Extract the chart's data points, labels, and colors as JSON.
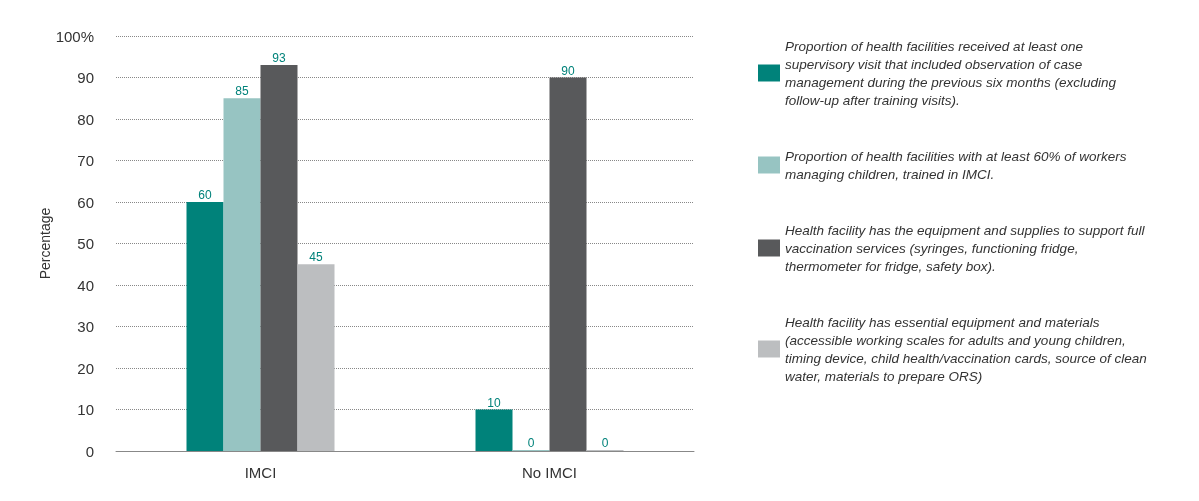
{
  "chart_data": {
    "type": "bar",
    "ylabel": "Percentage",
    "categories": [
      "IMCI",
      "No IMCI"
    ],
    "series": [
      {
        "name": "Proportion of health facilities received at least one supervisory visit that included observation of case management during the previous six months (excluding follow-up after training visits).",
        "color": "#00827a",
        "values": [
          60,
          10
        ]
      },
      {
        "name": "Proportion of health facilities with at least 60% of workers managing children, trained in IMCI.",
        "color": "#97c4c2",
        "values": [
          85,
          0
        ]
      },
      {
        "name": "Health facility has the equipment and supplies to support full vaccination services (syringes, functioning fridge, thermometer for fridge, safety box).",
        "color": "#58595b",
        "values": [
          93,
          90
        ]
      },
      {
        "name": "Health facility has essential equipment and materials (accessible working scales for adults and young children, timing device, child health/vaccination cards, source of clean water, materials to prepare ORS)",
        "color": "#bcbec0",
        "values": [
          45,
          0
        ]
      }
    ],
    "ylim": [
      0,
      100
    ],
    "yticks": [
      0,
      10,
      20,
      30,
      40,
      50,
      60,
      70,
      80,
      90,
      {
        "value": 100,
        "label": "100%"
      }
    ],
    "grid": "y",
    "legend": "right",
    "data_labels": true
  }
}
